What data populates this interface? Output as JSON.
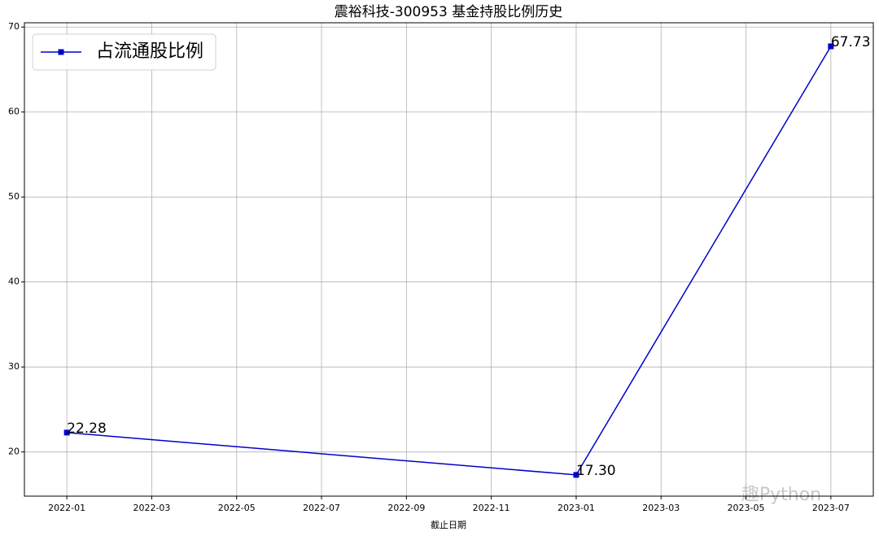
{
  "chart_data": {
    "type": "line",
    "title": "震裕科技-300953 基金持股比例历史",
    "xlabel": "截止日期",
    "x": [
      "2022-01",
      "2023-01",
      "2023-07"
    ],
    "series": [
      {
        "name": "占流通股比例",
        "color": "#0000cd",
        "values": [
          22.28,
          17.3,
          67.73
        ],
        "value_labels": [
          "22.28",
          "17.30",
          "67.73"
        ]
      }
    ],
    "xlim": [
      "2021-12",
      "2023-08"
    ],
    "xticks": [
      "2022-01",
      "2022-03",
      "2022-05",
      "2022-07",
      "2022-09",
      "2022-11",
      "2023-01",
      "2023-03",
      "2023-05",
      "2023-07"
    ],
    "ylim": [
      14.8,
      70.5
    ],
    "yticks": [
      20,
      30,
      40,
      50,
      60,
      70
    ],
    "grid": true,
    "legend": "upper-left",
    "watermark": "趣Python"
  }
}
